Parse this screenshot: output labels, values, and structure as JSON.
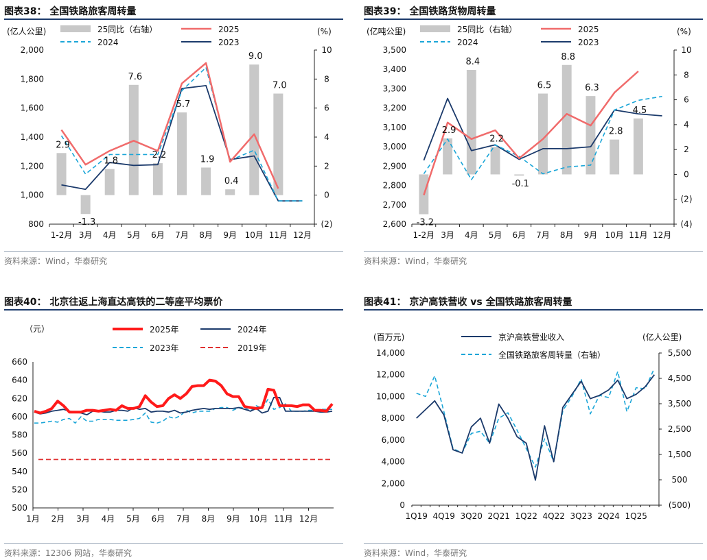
{
  "colors": {
    "bar": "#c8c8c8",
    "red": "#f06b6b",
    "navy": "#1b3a6b",
    "cyan": "#1ba6d8",
    "redline": "#e03030",
    "thickred": "#ff1a1a"
  },
  "chart_data": [
    {
      "type": "bar+line",
      "title": "图表38：  全国铁路旅客周转量",
      "source": "资料来源：Wind，华泰研究",
      "left_unit": "(亿人公里)",
      "right_unit": "(%)",
      "categories": [
        "1-2月",
        "3月",
        "4月",
        "5月",
        "6月",
        "7月",
        "8月",
        "9月",
        "10月",
        "11月",
        "12月"
      ],
      "yticks": [
        "2,000",
        "1,800",
        "1,600",
        "1,400",
        "1,200",
        "1,000",
        "800"
      ],
      "y2ticks": [
        "10",
        "8",
        "6",
        "4",
        "2",
        "0",
        "(2)"
      ],
      "ylim": [
        800,
        2000
      ],
      "y2lim": [
        -2,
        10
      ],
      "bars": {
        "name": "25同比（右轴）",
        "values": [
          2.9,
          -1.3,
          1.8,
          7.6,
          2.2,
          5.7,
          1.9,
          0.4,
          9.0,
          7.0,
          null
        ],
        "labels": [
          "2.9",
          "-1.3",
          "1.8",
          "7.6",
          "2.2",
          "5.7",
          "1.9",
          "0.4",
          "9.0",
          "7.0",
          ""
        ]
      },
      "series": [
        {
          "name": "2025",
          "style": "red",
          "values": [
            1450,
            1210,
            1305,
            1375,
            1305,
            1770,
            1910,
            1230,
            1420,
            1045,
            null
          ]
        },
        {
          "name": "2024",
          "style": "cyan",
          "values": [
            1410,
            1145,
            1280,
            1280,
            1280,
            1720,
            1880,
            1240,
            1310,
            960,
            960
          ]
        },
        {
          "name": "2023",
          "style": "navy",
          "values": [
            1070,
            1040,
            1225,
            1205,
            1210,
            1735,
            1755,
            1245,
            1270,
            960,
            960
          ]
        }
      ]
    },
    {
      "type": "bar+line",
      "title": "图表39：  全国铁路货物周转量",
      "source": "资料来源：Wind，华泰研究",
      "left_unit": "(亿吨公里)",
      "right_unit": "(%)",
      "categories": [
        "1-2月",
        "3月",
        "4月",
        "5月",
        "6月",
        "7月",
        "8月",
        "9月",
        "10月",
        "11月",
        "12月"
      ],
      "yticks": [
        "3,500",
        "3,400",
        "3,300",
        "3,200",
        "3,100",
        "3,000",
        "2,900",
        "2,800",
        "2,700",
        "2,600"
      ],
      "y2ticks": [
        "10",
        "8",
        "6",
        "4",
        "2",
        "0",
        "(2)",
        "(4)"
      ],
      "ylim": [
        2600,
        3500
      ],
      "y2lim": [
        -4,
        10
      ],
      "bars": {
        "name": "25同比（右轴）",
        "values": [
          -3.2,
          2.9,
          8.4,
          2.2,
          -0.1,
          6.5,
          8.8,
          6.3,
          2.8,
          4.5,
          null
        ],
        "labels": [
          "-3.2",
          "2.9",
          "8.4",
          "2.2",
          "-0.1",
          "6.5",
          "8.8",
          "6.3",
          "2.8",
          "4.5",
          ""
        ]
      },
      "series": [
        {
          "name": "2025",
          "style": "red",
          "values": [
            2750,
            3125,
            3040,
            3085,
            2940,
            3040,
            3170,
            3110,
            3280,
            3390,
            null
          ]
        },
        {
          "name": "2024",
          "style": "cyan",
          "values": [
            2860,
            3040,
            2830,
            3010,
            2950,
            2860,
            2895,
            2905,
            3190,
            3240,
            3260
          ]
        },
        {
          "name": "2023",
          "style": "navy",
          "values": [
            2930,
            3250,
            2980,
            3010,
            2935,
            2990,
            2990,
            3000,
            3190,
            3170,
            3160
          ]
        }
      ]
    },
    {
      "type": "line",
      "title": "图表40：  北京往返上海直达高铁的二等座平均票价",
      "source": "资料来源：12306 网站，华泰研究",
      "left_unit": "（元）",
      "xticks": [
        "1月",
        "2月",
        "3月",
        "4月",
        "5月",
        "6月",
        "7月",
        "8月",
        "9月",
        "10月",
        "11月",
        "12月"
      ],
      "yticks": [
        "660",
        "640",
        "620",
        "600",
        "580",
        "560",
        "540",
        "520",
        "500"
      ],
      "ylim": [
        500,
        660
      ],
      "series": [
        {
          "name": "2025年",
          "style": "thickred",
          "values": [
            606,
            604,
            606,
            609,
            617,
            612,
            605,
            605,
            605,
            607,
            607,
            606,
            607,
            608,
            607,
            612,
            609,
            609,
            611,
            623,
            616,
            611,
            612,
            620,
            624,
            620,
            625,
            633,
            634,
            634,
            640,
            639,
            634,
            625,
            622,
            622,
            611,
            610,
            609,
            610,
            630,
            629,
            612,
            612,
            612,
            611,
            613,
            613,
            607,
            607,
            606,
            614
          ]
        },
        {
          "name": "2024年",
          "style": "navy",
          "values": [
            605,
            603,
            604,
            606,
            607,
            608,
            606,
            605,
            604,
            602,
            606,
            606,
            605,
            605,
            607,
            607,
            606,
            610,
            608,
            609,
            605,
            606,
            606,
            605,
            607,
            604,
            605,
            607,
            608,
            609,
            608,
            609,
            609,
            609,
            609,
            610,
            608,
            606,
            609,
            604,
            606,
            621,
            621,
            606,
            606,
            606,
            606,
            606,
            606,
            605,
            605,
            606
          ]
        },
        {
          "name": "2023年",
          "style": "cyan",
          "values": [
            593,
            593,
            594,
            595,
            594,
            597,
            598,
            593,
            600,
            595,
            595,
            597,
            597,
            597,
            596,
            596,
            596,
            597,
            598,
            604,
            594,
            593,
            595,
            600,
            598,
            601,
            607,
            604,
            606,
            606,
            606,
            609,
            610,
            610,
            607,
            610,
            610,
            606,
            612,
            609,
            619,
            608,
            610,
            614,
            606,
            606,
            606,
            607,
            607,
            608,
            608,
            608
          ]
        },
        {
          "name": "2019年",
          "style": "redline",
          "values": [
            553,
            553
          ]
        }
      ]
    },
    {
      "type": "line",
      "title": "图表41：  京沪高铁营收 vs 全国铁路旅客周转量",
      "source": "资料来源：Wind，华泰研究",
      "left_unit": "(百万元)",
      "right_unit": "(亿人公里)",
      "xticks": [
        "1Q19",
        "4Q19",
        "3Q20",
        "2Q21",
        "1Q22",
        "4Q22",
        "3Q23",
        "2Q24",
        "1Q25"
      ],
      "yticks": [
        "14,000",
        "12,000",
        "10,000",
        "8,000",
        "6,000",
        "4,000",
        "2,000",
        "0"
      ],
      "y2ticks": [
        "5,500",
        "4,500",
        "3,500",
        "2,500",
        "1,500",
        "500",
        "(500)"
      ],
      "ylim": [
        0,
        14000
      ],
      "y2lim": [
        -500,
        5500
      ],
      "series": [
        {
          "name": "京沪高铁营业收入",
          "style": "navy",
          "axis": "left",
          "values": [
            8000,
            8800,
            9600,
            8300,
            5100,
            4800,
            7200,
            8000,
            5700,
            9300,
            8000,
            6300,
            5700,
            2300,
            7300,
            4000,
            9000,
            10200,
            11400,
            9800,
            10100,
            10600,
            11500,
            9800,
            10200,
            10900,
            12000
          ]
        },
        {
          "name": "全国铁路旅客周转量（右轴）",
          "style": "cyan",
          "axis": "left",
          "values": [
            10300,
            10000,
            11900,
            8600,
            5200,
            4800,
            6600,
            6800,
            5700,
            8000,
            8500,
            6900,
            5200,
            3500,
            6100,
            4000,
            8700,
            10000,
            11600,
            8400,
            10100,
            9900,
            12300,
            8600,
            10800,
            10700,
            12600
          ]
        }
      ]
    }
  ]
}
